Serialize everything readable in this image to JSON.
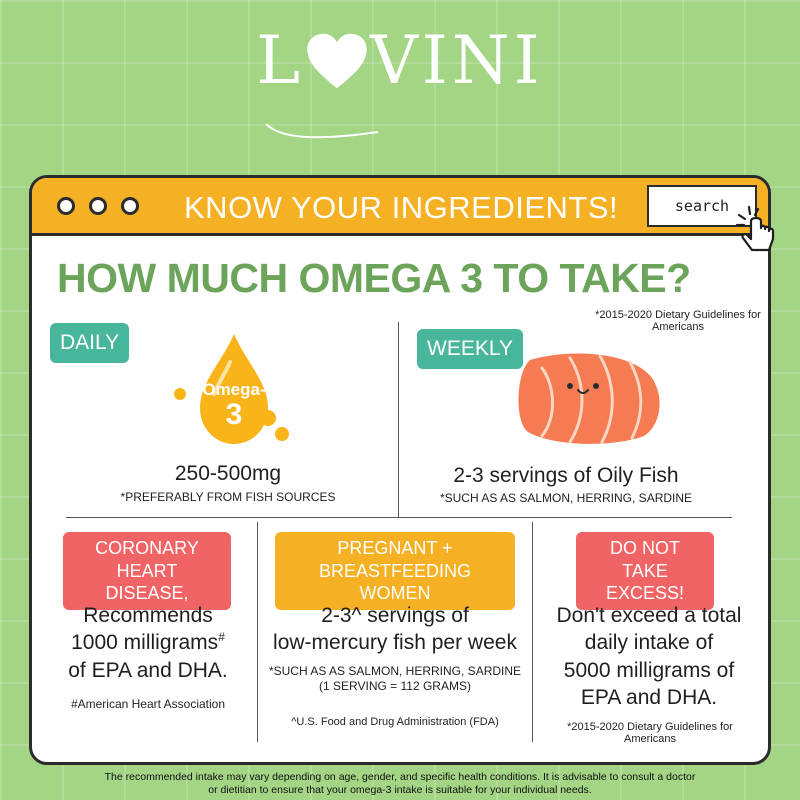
{
  "logo": {
    "text_left": "L",
    "text_right": "VINI",
    "icon": "heart-icon"
  },
  "window": {
    "title": "KNOW YOUR INGREDIENTS!",
    "search_label": "search",
    "icons": [
      "window-dot-icon",
      "pointer-hand-icon"
    ]
  },
  "heading": "HOW MUCH OMEGA 3 TO TAKE?",
  "source_top": "*2015-2020 Dietary Guidelines for Americans",
  "daily": {
    "tag": "DAILY",
    "drop_text_1": "Omega-",
    "drop_text_2": "3",
    "amount": "250-500mg",
    "note": "*PREFERABLY FROM FISH SOURCES"
  },
  "weekly": {
    "tag": "WEEKLY",
    "amount": "2-3 servings of Oily Fish",
    "note": "*SUCH AS  AS SALMON, HERRING, SARDINE"
  },
  "coronary": {
    "tag_line1": "CORONARY",
    "tag_line2": "HEART DISEASE,",
    "text_line1": "Recommends",
    "text_line2": "1000 milligrams",
    "text_line2_sup": "#",
    "text_line3": "of EPA and DHA.",
    "source": "#American Heart Association"
  },
  "pregnant": {
    "tag_line1": "PREGNANT +",
    "tag_line2": "BREASTFEEDING WOMEN",
    "text_line1": "2-3^ servings of",
    "text_line2": "low-mercury fish per week",
    "note_line1": "*SUCH AS  AS SALMON, HERRING, SARDINE",
    "note_line2": "(1 SERVING = 112 GRAMS)",
    "source": "^U.S. Food and Drug Administration (FDA)"
  },
  "excess": {
    "tag_line1": "DO NOT",
    "tag_line2": "TAKE EXCESS!",
    "text_line1": "Don't  exceed a total",
    "text_line2": "daily intake of",
    "text_line3": "5000 milligrams of",
    "text_line4": "EPA and DHA.",
    "source": "*2015-2020 Dietary Guidelines for Americans"
  },
  "disclaimer_line1": "The recommended intake may vary depending on age, gender, and specific health conditions. It is advisable to consult a doctor",
  "disclaimer_line2": "or dietitian to ensure that your omega-3 intake is suitable for your individual needs.",
  "colors": {
    "background": "#a3d584",
    "titlebar": "#f6b023",
    "heading": "#6ba45a",
    "teal": "#47b69a",
    "red": "#f06465",
    "salmon": "#f47b52"
  }
}
